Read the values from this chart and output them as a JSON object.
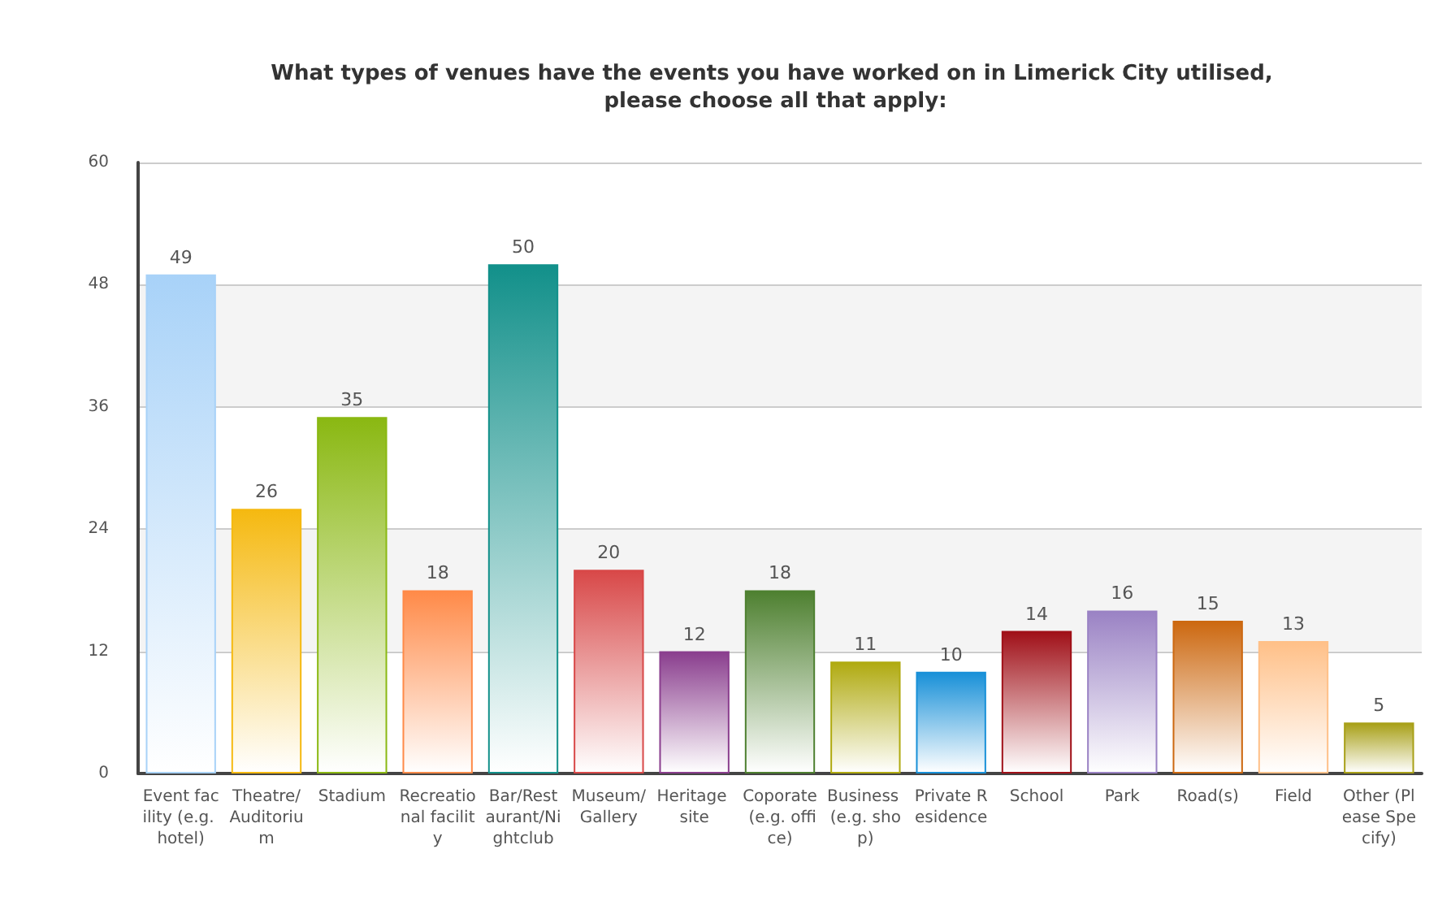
{
  "chart_data": {
    "type": "bar",
    "title": "What types of venues have the events you have worked on in Limerick City utilised, please choose all that apply:",
    "categories": [
      "Event facility (e.g. hotel)",
      "Theatre/Auditorium",
      "Stadium",
      "Recreational facility",
      "Bar/Restaurant/Nightclub",
      "Museum/Gallery",
      "Heritage site",
      "Coporate (e.g. office)",
      "Business (e.g. shop)",
      "Private Residence",
      "School",
      "Park",
      "Road(s)",
      "Field",
      "Other (Please Specify)"
    ],
    "values": [
      49,
      26,
      35,
      18,
      50,
      20,
      12,
      18,
      11,
      10,
      14,
      16,
      15,
      13,
      5
    ],
    "colors": [
      "#a8d2f8",
      "#f5b910",
      "#8ab812",
      "#ff8a48",
      "#12908a",
      "#d84848",
      "#8a3e8e",
      "#4e8030",
      "#b0aa10",
      "#1890d8",
      "#a01018",
      "#9a82c4",
      "#cc6810",
      "#ffc088",
      "#a8a018"
    ],
    "ylim": [
      0,
      60
    ],
    "yticks": [
      0,
      12,
      24,
      36,
      48,
      60
    ],
    "grid": "y",
    "data_labels": true
  }
}
